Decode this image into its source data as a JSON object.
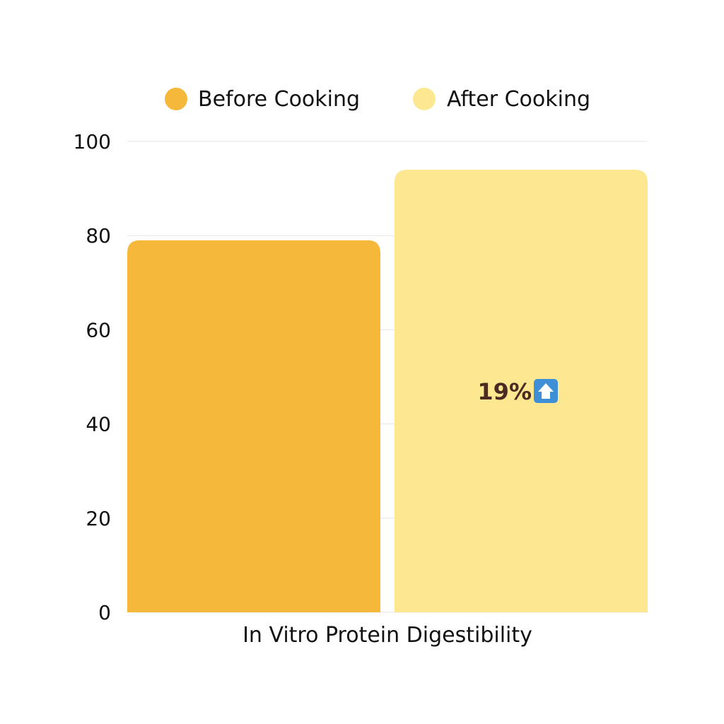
{
  "chart_data": {
    "type": "bar",
    "title": "",
    "xlabel": "",
    "ylabel": "",
    "categories": [
      "In Vitro Protein Digestibility"
    ],
    "series": [
      {
        "name": "Before Cooking",
        "values": [
          79
        ],
        "color": "#f5b83a"
      },
      {
        "name": "After Cooking",
        "values": [
          94
        ],
        "color": "#fde891"
      }
    ],
    "ylim": [
      0,
      100
    ],
    "yticks": [
      "0",
      "20",
      "40",
      "60",
      "80",
      "100"
    ],
    "ytick_values": [
      0,
      20,
      40,
      60,
      80,
      100
    ],
    "grid": true,
    "legend": "top-center",
    "annotation": {
      "text": "19%",
      "series": "After Cooking",
      "icon": "up-arrow-icon",
      "icon_color": "#3f8fd6"
    }
  }
}
